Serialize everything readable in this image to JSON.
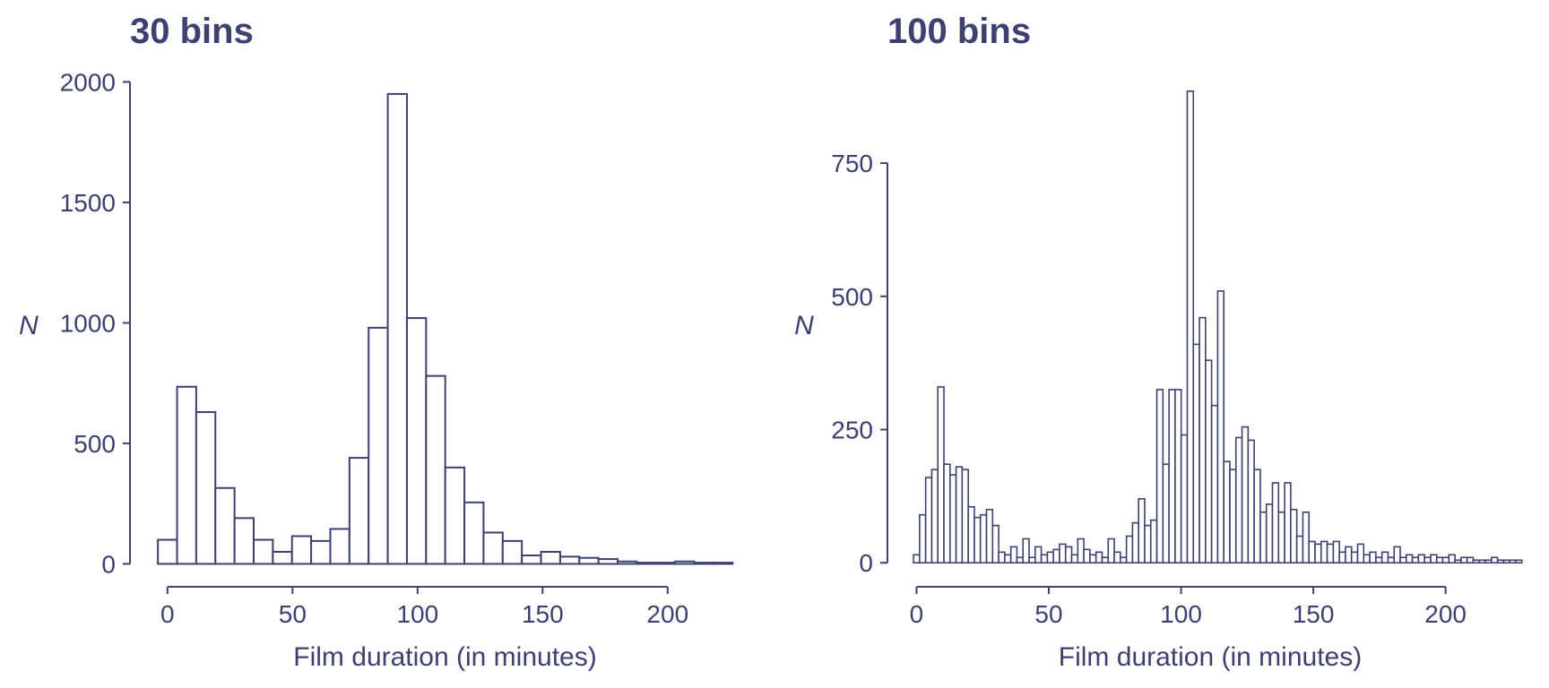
{
  "theme": {
    "ink": "#3c4170",
    "bar_fill": "#ffffff"
  },
  "chart_data": [
    {
      "type": "bar",
      "title": "30 bins",
      "xlabel": "Film duration (in minutes)",
      "ylabel": "N",
      "xlim": [
        -15,
        237
      ],
      "ylim": [
        -95,
        2050
      ],
      "xticks": [
        0,
        50,
        100,
        150,
        200
      ],
      "xtick_labels": [
        "0",
        "50",
        "100",
        "150",
        "200"
      ],
      "yticks": [
        0,
        500,
        1000,
        1500,
        2000
      ],
      "ytick_labels": [
        "0",
        "500",
        "1000",
        "1500",
        "2000"
      ],
      "bin_start": -3.83,
      "bin_width": 7.66,
      "values": [
        100,
        735,
        630,
        315,
        190,
        100,
        50,
        115,
        95,
        145,
        440,
        980,
        1950,
        1020,
        780,
        400,
        255,
        130,
        95,
        35,
        50,
        30,
        25,
        20,
        10,
        5,
        5,
        10,
        5,
        5
      ],
      "grid": false
    },
    {
      "type": "bar",
      "title": "100 bins",
      "xlabel": "Film duration (in minutes)",
      "ylabel": "N",
      "xlim": [
        -11,
        233
      ],
      "ylim": [
        -45,
        925
      ],
      "xticks": [
        0,
        50,
        100,
        150,
        200
      ],
      "xtick_labels": [
        "0",
        "50",
        "100",
        "150",
        "200"
      ],
      "yticks": [
        0,
        250,
        500,
        750
      ],
      "ytick_labels": [
        "0",
        "250",
        "500",
        "750"
      ],
      "bin_start": -1.15,
      "bin_width": 2.3,
      "values": [
        15,
        90,
        160,
        175,
        330,
        185,
        165,
        180,
        175,
        105,
        85,
        90,
        100,
        70,
        20,
        15,
        30,
        10,
        45,
        10,
        30,
        15,
        20,
        25,
        35,
        30,
        15,
        45,
        25,
        15,
        20,
        10,
        45,
        20,
        10,
        50,
        75,
        120,
        70,
        80,
        325,
        185,
        325,
        325,
        240,
        885,
        410,
        460,
        380,
        295,
        510,
        190,
        175,
        235,
        255,
        230,
        175,
        95,
        110,
        150,
        95,
        150,
        100,
        50,
        95,
        40,
        35,
        40,
        35,
        40,
        20,
        30,
        20,
        35,
        15,
        20,
        10,
        20,
        10,
        30,
        10,
        15,
        10,
        15,
        10,
        15,
        10,
        10,
        15,
        5,
        10,
        10,
        5,
        5,
        5,
        10,
        5,
        5,
        5,
        5
      ],
      "grid": false
    }
  ]
}
